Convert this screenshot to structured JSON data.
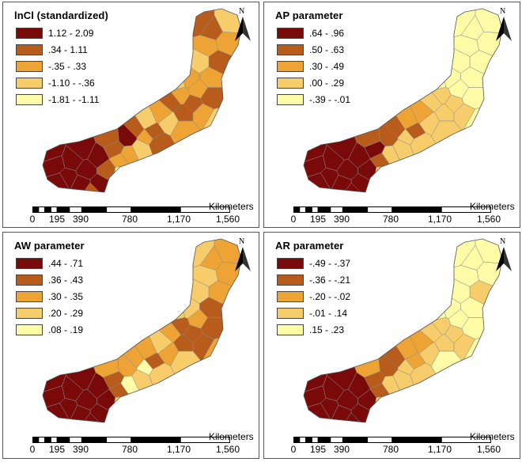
{
  "panels": [
    {
      "title": "lnCl (standardized)",
      "classes": [
        {
          "label": "1.12 - 2.09",
          "color": "#7a0a0a"
        },
        {
          "label": ".34 - 1.11",
          "color": "#b85c1c"
        },
        {
          "label": "-.35 - .33",
          "color": "#eea434"
        },
        {
          "label": "-1.10 - -.36",
          "color": "#f7cd6c"
        },
        {
          "label": "-1.81 - -1.11",
          "color": "#fffca8"
        }
      ]
    },
    {
      "title": "AP parameter",
      "classes": [
        {
          "label": ".64 - .96",
          "color": "#7a0a0a"
        },
        {
          "label": ".50 - .63",
          "color": "#b85c1c"
        },
        {
          "label": ".30 - .49",
          "color": "#eea434"
        },
        {
          "label": ".00 - .29",
          "color": "#f7cd6c"
        },
        {
          "label": "-.39 - -.01",
          "color": "#fffca8"
        }
      ]
    },
    {
      "title": "AW parameter",
      "classes": [
        {
          "label": ".44 - .71",
          "color": "#7a0a0a"
        },
        {
          "label": ".36 - .43",
          "color": "#b85c1c"
        },
        {
          "label": ".30 - .35",
          "color": "#eea434"
        },
        {
          "label": ".20 - .29",
          "color": "#f7cd6c"
        },
        {
          "label": ".08 - .19",
          "color": "#fffca8"
        }
      ]
    },
    {
      "title": "AR parameter",
      "classes": [
        {
          "label": "-.49 - -.37",
          "color": "#7a0a0a"
        },
        {
          "label": "-.36 - -.21",
          "color": "#b85c1c"
        },
        {
          "label": "-.20 - -.02",
          "color": "#eea434"
        },
        {
          "label": "-.01 - .14",
          "color": "#f7cd6c"
        },
        {
          "label": ".15 - .23",
          "color": "#fffca8"
        }
      ]
    }
  ],
  "scale_bar": {
    "unit": "Kilometers",
    "ticks": [
      "0",
      "195",
      "390",
      "780",
      "1,170",
      "1,560"
    ]
  },
  "north_label": "N"
}
